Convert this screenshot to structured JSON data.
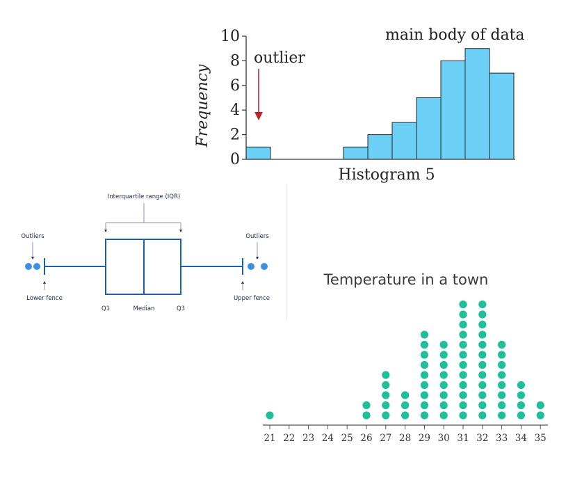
{
  "chart_data": [
    {
      "type": "bar",
      "title": "Histogram 5",
      "xlabel": "Histogram 5",
      "ylabel": "Frequency",
      "ylim": [
        0,
        10
      ],
      "yticks": [
        "0",
        "2",
        "4",
        "6",
        "8",
        "10"
      ],
      "values": [
        1,
        0,
        0,
        0,
        1,
        2,
        3,
        5,
        8,
        9,
        7
      ],
      "annotations": {
        "outlier": "outlier",
        "main_body": "main body of data"
      },
      "colors": {
        "bar": "#6ccff6",
        "arrow": "#c0242b",
        "axis": "#333333"
      }
    },
    {
      "type": "boxplot",
      "title": "Interquartile range (IQR)",
      "labels": {
        "outliers_left": "Outliers",
        "outliers_right": "Outliers",
        "lower_fence": "Lower fence",
        "upper_fence": "Upper fence",
        "q1": "Q1",
        "median": "Median",
        "q3": "Q3"
      },
      "colors": {
        "box": "#1a5fb4",
        "outlier": "#3d8fe0",
        "text": "#1e2a4a"
      }
    },
    {
      "type": "scatter",
      "title": "Temperature in a town",
      "categories": [
        "21",
        "22",
        "23",
        "24",
        "25",
        "26",
        "27",
        "28",
        "29",
        "30",
        "31",
        "32",
        "33",
        "34",
        "35"
      ],
      "values": [
        1,
        0,
        0,
        0,
        0,
        2,
        5,
        3,
        9,
        8,
        12,
        12,
        8,
        4,
        2
      ],
      "colors": {
        "dot": "#1fbf9b",
        "axis": "#555555",
        "title": "#3a3a3a"
      }
    }
  ]
}
